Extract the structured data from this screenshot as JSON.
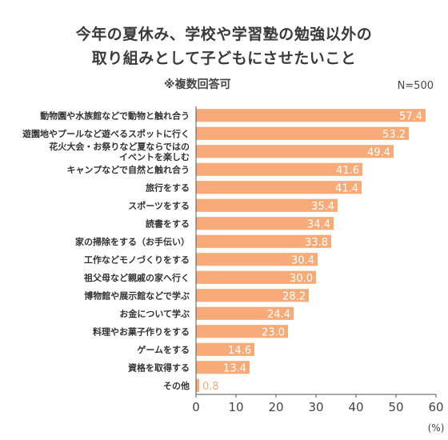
{
  "header": {
    "title_line1": "今年の夏休み、学校や学習塾の勉強以外の",
    "title_line2": "取り組みとして子どもにさせたいこと",
    "subtitle": "※複数回答可",
    "sample": "N=500"
  },
  "chart_data": {
    "type": "bar",
    "orientation": "horizontal",
    "categories": [
      "動物園や水族館などで動物と触れ合う",
      "遊園地やプールなど遊べるスポットに行く",
      "花火大会・お祭りなど夏ならではの\nイベントを楽しむ",
      "キャンプなどで自然と触れ合う",
      "旅行をする",
      "スポーツをする",
      "読書をする",
      "家の掃除をする（お手伝い）",
      "工作などモノづくりをする",
      "祖父母など親戚の家へ行く",
      "博物館や展示館などで学ぶ",
      "お金について学ぶ",
      "料理やお菓子作りをする",
      "ゲームをする",
      "資格を取得する",
      "その他"
    ],
    "values": [
      57.4,
      53.2,
      49.4,
      41.6,
      41.4,
      35.4,
      34.4,
      33.8,
      30.4,
      30.0,
      28.2,
      24.4,
      23.0,
      14.6,
      13.4,
      0.8
    ],
    "value_labels": [
      "57.4",
      "53.2",
      "49.4",
      "41.6",
      "41.4",
      "35.4",
      "34.4",
      "33.8",
      "30.4",
      "30.0",
      "28.2",
      "24.4",
      "23.0",
      "14.6",
      "13.4",
      "0.8"
    ],
    "xlim": [
      0,
      60
    ],
    "xticks": [
      0,
      10,
      20,
      30,
      40,
      50,
      60
    ],
    "xtick_labels": [
      "0",
      "10",
      "20",
      "30",
      "40",
      "50",
      "60"
    ],
    "unit_label": "(%)",
    "colors": {
      "bar": "#f7ab78",
      "label": "#ffffff",
      "axis": "#555555",
      "grid": "#cccccc"
    }
  }
}
